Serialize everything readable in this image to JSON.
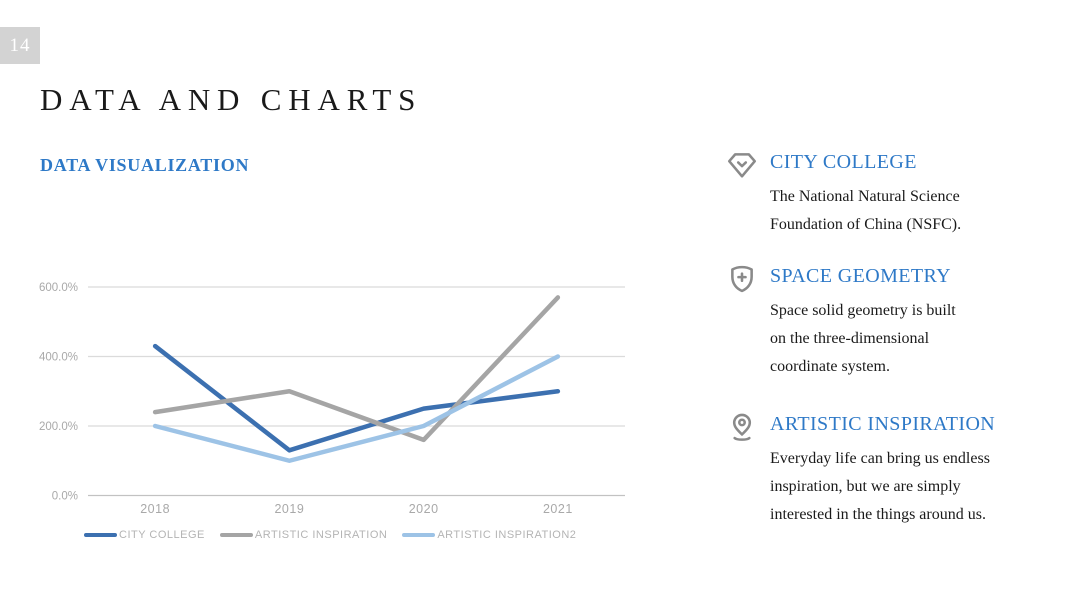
{
  "page": {
    "number": "14"
  },
  "header": {
    "title": "DATA AND CHARTS",
    "subtitle": "DATA VISUALIZATION"
  },
  "chart_data": {
    "type": "line",
    "x": [
      "2018",
      "2019",
      "2020",
      "2021"
    ],
    "series": [
      {
        "name": "CITY COLLEGE",
        "color": "#3C70B0",
        "values": [
          430,
          130,
          250,
          300
        ]
      },
      {
        "name": "ARTISTIC INSPIRATION",
        "color": "#A5A5A5",
        "values": [
          240,
          300,
          160,
          570
        ]
      },
      {
        "name": "ARTISTIC INSPIRATION2",
        "color": "#9DC3E6",
        "values": [
          200,
          100,
          200,
          400
        ]
      }
    ],
    "y_tick_values": [
      0,
      200,
      400,
      600
    ],
    "y_tick_labels": [
      "0.0%",
      "200.0%",
      "400.0%",
      "600.0%"
    ],
    "ylim": [
      0,
      600
    ],
    "grid": true,
    "legend_position": "bottom",
    "title": "",
    "xlabel": "",
    "ylabel": ""
  },
  "features": [
    {
      "icon": "gem-check-icon",
      "title": "CITY COLLEGE",
      "lines": [
        "The National Natural Science",
        "Foundation of China (NSFC)."
      ]
    },
    {
      "icon": "shield-plus-icon",
      "title": "SPACE GEOMETRY",
      "lines": [
        "Space solid geometry is built",
        "on the three-dimensional",
        "coordinate system."
      ]
    },
    {
      "icon": "location-pin-icon",
      "title": "ARTISTIC INSPIRATION",
      "lines": [
        "Everyday life can bring us endless",
        "inspiration, but we are simply",
        "interested in the things around us."
      ]
    }
  ],
  "colors": {
    "accent_blue": "#2E79C7",
    "title_text": "#1A1A1A",
    "icon_gray": "#8A8A8A",
    "badge_bg": "#D3D3D3",
    "badge_text": "#FFFFFF",
    "axis_label": "#A9A9A9",
    "legend_label": "#B4B4B4",
    "gridline": "#DBDBDB",
    "baseline": "#C2C2C2"
  }
}
